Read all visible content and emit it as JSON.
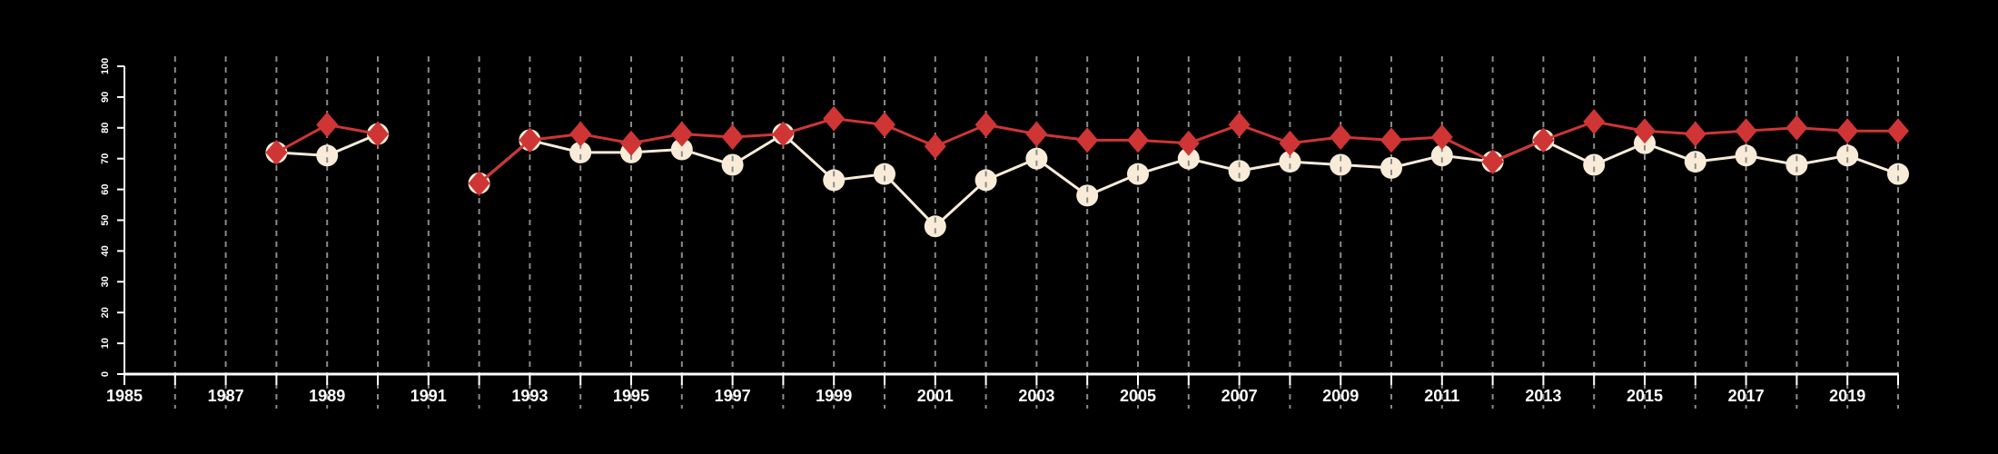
{
  "chart_data": {
    "type": "line",
    "title": "",
    "xlabel": "",
    "ylabel": "",
    "xlim": [
      1985,
      2020
    ],
    "ylim": [
      0,
      100
    ],
    "grid": "vertical dashed lines at each year",
    "yticks": [
      "0",
      "10",
      "20",
      "30",
      "40",
      "50",
      "60",
      "70",
      "80",
      "90",
      "100"
    ],
    "xticks": [
      "1985",
      "1987",
      "1989",
      "1991",
      "1993",
      "1995",
      "1997",
      "1999",
      "2001",
      "2003",
      "2005",
      "2007",
      "2009",
      "2011",
      "2013",
      "2015",
      "2017",
      "2019"
    ],
    "x": [
      1985,
      1986,
      1987,
      1988,
      1989,
      1990,
      1991,
      1992,
      1993,
      1994,
      1995,
      1996,
      1997,
      1998,
      1999,
      2000,
      2001,
      2002,
      2003,
      2004,
      2005,
      2006,
      2007,
      2008,
      2009,
      2010,
      2011,
      2012,
      2013,
      2014,
      2015,
      2016,
      2017,
      2018,
      2019,
      2020
    ],
    "series": [
      {
        "name": "circles",
        "color": "#f8ecd8",
        "marker": "circle",
        "values": [
          null,
          null,
          null,
          72,
          71,
          78,
          null,
          62,
          76,
          72,
          72,
          73,
          68,
          78,
          63,
          65,
          48,
          63,
          70,
          58,
          65,
          70,
          66,
          69,
          68,
          67,
          71,
          69,
          76,
          68,
          75,
          69,
          71,
          68,
          71,
          65
        ]
      },
      {
        "name": "diamonds",
        "color": "#d03535",
        "marker": "diamond",
        "values": [
          null,
          null,
          null,
          72,
          81,
          78,
          null,
          62,
          76,
          78,
          75,
          78,
          77,
          78,
          83,
          81,
          74,
          81,
          78,
          76,
          76,
          75,
          81,
          75,
          77,
          76,
          77,
          69,
          76,
          82,
          79,
          78,
          79,
          80,
          79,
          79
        ]
      }
    ]
  }
}
